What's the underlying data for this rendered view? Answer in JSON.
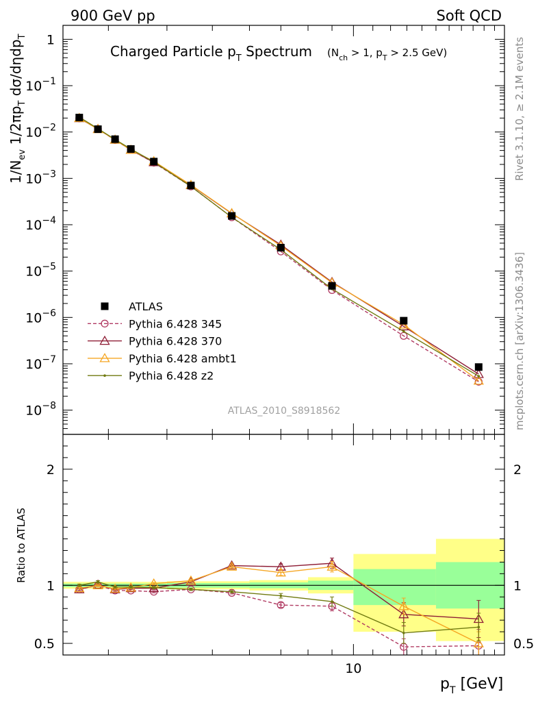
{
  "header": {
    "left": "900 GeV pp",
    "right": "Soft QCD"
  },
  "side_labels": {
    "rivet": "Rivet 3.1.10, ≥ 2.1M events",
    "mcplots": "mcplots.cern.ch [arXiv:1306.3436]"
  },
  "chart_data": [
    {
      "type": "line",
      "title_main": "Charged Particle p",
      "title_sub": "T",
      "title_tail": " Spectrum",
      "title_cut_1": "(N",
      "title_cut_1_sub": "ch",
      "title_cut_2": " > 1, p",
      "title_cut_2_sub": "T",
      "title_cut_3": " > 2.5 GeV)",
      "ylabel_a": "1/N",
      "ylabel_a_sub": "ev",
      "ylabel_b": " 1/2πp",
      "ylabel_b_sub": "T",
      "ylabel_c": " dσ/dηdp",
      "ylabel_c_sub": "T",
      "yscale": "log",
      "ylim": [
        3e-09,
        2
      ],
      "y_tick_labels": [
        "1",
        "10",
        "10",
        "10",
        "10",
        "10",
        "10",
        "10",
        "10"
      ],
      "y_tick_exponents": [
        "",
        "−1",
        "−2",
        "−3",
        "−4",
        "−5",
        "−6",
        "−7",
        "−8"
      ],
      "watermark": "ATLAS_2010_S8918562",
      "legend": [
        "ATLAS",
        "Pythia 6.428 345",
        "Pythia 6.428 370",
        "Pythia 6.428 ambt1",
        "Pythia 6.428 z2"
      ],
      "legend_position": "bottom-left",
      "x": [
        2.6,
        2.85,
        3.1,
        3.35,
        3.75,
        4.5,
        5.5,
        7.0,
        9.0,
        12.8,
        18.5
      ],
      "series": [
        {
          "name": "ATLAS",
          "color": "#000000",
          "marker": "square",
          "values": [
            0.0205,
            0.0115,
            0.007,
            0.0043,
            0.0023,
            0.0007,
            0.000155,
            3.2e-05,
            4.8e-06,
            8.5e-07,
            8.5e-08
          ]
        },
        {
          "name": "Pythia 6.428 345",
          "color": "#b03a62",
          "marker": "circle",
          "dashed": true,
          "values": [
            0.0197,
            0.0116,
            0.0067,
            0.0041,
            0.00218,
            0.00067,
            0.000145,
            2.65e-05,
            3.9e-06,
            4e-07,
            4.1e-08
          ]
        },
        {
          "name": "Pythia 6.428 370",
          "color": "#8e1d35",
          "marker": "triangle",
          "values": [
            0.0198,
            0.0116,
            0.0068,
            0.0041,
            0.00222,
            0.00071,
            0.000175,
            3.7e-05,
            5.8e-06,
            6.4e-07,
            6e-08
          ]
        },
        {
          "name": "Pythia 6.428 ambt1",
          "color": "#f5a623",
          "marker": "triangle",
          "values": [
            0.02,
            0.0115,
            0.0068,
            0.0041,
            0.00234,
            0.00072,
            0.000177,
            3.5e-05,
            5.6e-06,
            7e-07,
            4.3e-08
          ]
        },
        {
          "name": "Pythia 6.428 z2",
          "color": "#707a10",
          "marker": "dot",
          "values": [
            0.021,
            0.0118,
            0.0069,
            0.0043,
            0.00226,
            0.00067,
            0.000145,
            2.9e-05,
            4.1e-06,
            5e-07,
            5.4e-08
          ]
        }
      ]
    },
    {
      "type": "line",
      "ylabel": "Ratio to ATLAS",
      "xlabel_main": "p",
      "xlabel_sub": "T",
      "xlabel_tail": "  [GeV]",
      "xscale": "log",
      "xlim": [
        2.4,
        21
      ],
      "ylim": [
        0.4,
        2.3
      ],
      "x_tick_label": "10",
      "y_tick_labels_left": [
        "0.5",
        "1",
        "2"
      ],
      "y_tick_labels_right": [
        "0.5",
        "1",
        "2"
      ],
      "bands": [
        {
          "x0": 2.4,
          "x1": 4.0,
          "inner": [
            0.985,
            1.015
          ],
          "outer": [
            0.97,
            1.03
          ]
        },
        {
          "x0": 4.0,
          "x1": 6.0,
          "inner": [
            0.98,
            1.02
          ],
          "outer": [
            0.965,
            1.035
          ]
        },
        {
          "x0": 6.0,
          "x1": 8.0,
          "inner": [
            0.975,
            1.025
          ],
          "outer": [
            0.955,
            1.045
          ]
        },
        {
          "x0": 8.0,
          "x1": 10.0,
          "inner": [
            0.96,
            1.04
          ],
          "outer": [
            0.93,
            1.07
          ]
        },
        {
          "x0": 10.0,
          "x1": 15.0,
          "inner": [
            0.83,
            1.14
          ],
          "outer": [
            0.6,
            1.27
          ]
        },
        {
          "x0": 15.0,
          "x1": 21.0,
          "inner": [
            0.8,
            1.2
          ],
          "outer": [
            0.52,
            1.4
          ]
        }
      ],
      "x": [
        2.6,
        2.85,
        3.1,
        3.35,
        3.75,
        4.5,
        5.5,
        7.0,
        9.0,
        12.8,
        18.5
      ],
      "series": [
        {
          "name": "Pythia 6.428 345",
          "color": "#b03a62",
          "marker": "circle",
          "dashed": true,
          "values": [
            0.965,
            1.0,
            0.955,
            0.955,
            0.945,
            0.965,
            0.935,
            0.83,
            0.82,
            0.47,
            0.48
          ],
          "errors": [
            0.01,
            0.01,
            0.01,
            0.01,
            0.01,
            0.01,
            0.01,
            0.02,
            0.04,
            0.07,
            0.14
          ]
        },
        {
          "name": "Pythia 6.428 370",
          "color": "#8e1d35",
          "marker": "triangle",
          "values": [
            0.965,
            1.005,
            0.965,
            0.975,
            0.975,
            1.03,
            1.17,
            1.16,
            1.19,
            0.75,
            0.71
          ],
          "errors": [
            0.01,
            0.01,
            0.01,
            0.01,
            0.01,
            0.01,
            0.015,
            0.025,
            0.045,
            0.1,
            0.16
          ]
        },
        {
          "name": "Pythia 6.428 ambt1",
          "color": "#f5a623",
          "marker": "triangle",
          "values": [
            0.975,
            1.0,
            0.97,
            0.98,
            1.015,
            1.04,
            1.16,
            1.11,
            1.16,
            0.82,
            0.5
          ],
          "errors": [
            0.01,
            0.01,
            0.01,
            0.01,
            0.01,
            0.01,
            0.015,
            0.025,
            0.045,
            0.07,
            0.1
          ]
        },
        {
          "name": "Pythia 6.428 z2",
          "color": "#707a10",
          "marker": "dot",
          "values": [
            1.0,
            1.03,
            0.985,
            0.985,
            0.98,
            0.965,
            0.945,
            0.91,
            0.86,
            0.59,
            0.64
          ],
          "errors": [
            0.01,
            0.01,
            0.01,
            0.01,
            0.01,
            0.01,
            0.01,
            0.02,
            0.04,
            0.09,
            0.12
          ]
        }
      ]
    }
  ]
}
